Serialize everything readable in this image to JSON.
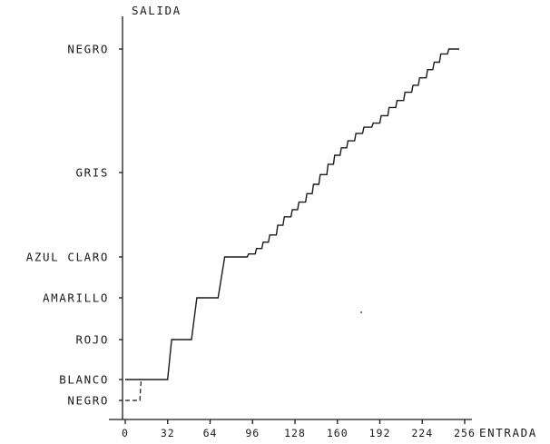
{
  "chart_data": {
    "type": "line",
    "xlabel": "ENTRADA",
    "ylabel": "SALIDA",
    "x_ticks": [
      0,
      32,
      64,
      96,
      128,
      160,
      192,
      224,
      256
    ],
    "y_levels": [
      {
        "name": "NEGRO",
        "value": -1
      },
      {
        "name": "BLANCO",
        "value": 0
      },
      {
        "name": "ROJO",
        "value": 1
      },
      {
        "name": "AMARILLO",
        "value": 2
      },
      {
        "name": "AZUL CLARO",
        "value": 3
      },
      {
        "name": "GRIS",
        "value": 5
      },
      {
        "name": "NEGRO",
        "value": 8
      }
    ],
    "series": [
      {
        "style": "solid",
        "points": [
          [
            0,
            0
          ],
          [
            32,
            0
          ],
          [
            35,
            1
          ],
          [
            50,
            1
          ],
          [
            54,
            2
          ],
          [
            70,
            2
          ],
          [
            75,
            3
          ],
          [
            92,
            3
          ],
          [
            93,
            3.07
          ],
          [
            98,
            3.07
          ],
          [
            99,
            3.2
          ],
          [
            103,
            3.2
          ],
          [
            104,
            3.35
          ],
          [
            108,
            3.35
          ],
          [
            109,
            3.52
          ],
          [
            114,
            3.52
          ],
          [
            115,
            3.75
          ],
          [
            119,
            3.75
          ],
          [
            120,
            3.95
          ],
          [
            125,
            3.95
          ],
          [
            126,
            4.12
          ],
          [
            130,
            4.12
          ],
          [
            131,
            4.3
          ],
          [
            136,
            4.3
          ],
          [
            137,
            4.5
          ],
          [
            141,
            4.5
          ],
          [
            142,
            4.72
          ],
          [
            146,
            4.72
          ],
          [
            147,
            4.95
          ],
          [
            152,
            4.95
          ],
          [
            153,
            5.2
          ],
          [
            157,
            5.2
          ],
          [
            158,
            5.42
          ],
          [
            162,
            5.42
          ],
          [
            163,
            5.6
          ],
          [
            167,
            5.6
          ],
          [
            168,
            5.77
          ],
          [
            173,
            5.77
          ],
          [
            174,
            5.95
          ],
          [
            179,
            5.95
          ],
          [
            180,
            6.1
          ],
          [
            186,
            6.1
          ],
          [
            187,
            6.2
          ],
          [
            192,
            6.2
          ],
          [
            193,
            6.38
          ],
          [
            198,
            6.38
          ],
          [
            199,
            6.58
          ],
          [
            204,
            6.58
          ],
          [
            205,
            6.75
          ],
          [
            210,
            6.75
          ],
          [
            211,
            6.95
          ],
          [
            216,
            6.95
          ],
          [
            217,
            7.12
          ],
          [
            221,
            7.12
          ],
          [
            222,
            7.3
          ],
          [
            227,
            7.3
          ],
          [
            228,
            7.5
          ],
          [
            232,
            7.5
          ],
          [
            233,
            7.68
          ],
          [
            237,
            7.68
          ],
          [
            238,
            7.88
          ],
          [
            243,
            7.88
          ],
          [
            244,
            8.05
          ],
          [
            252,
            8.05
          ]
        ]
      },
      {
        "style": "dashed",
        "points": [
          [
            0,
            -1
          ],
          [
            11,
            -1
          ],
          [
            12,
            0
          ]
        ]
      }
    ],
    "grid": false,
    "legend": "none"
  }
}
